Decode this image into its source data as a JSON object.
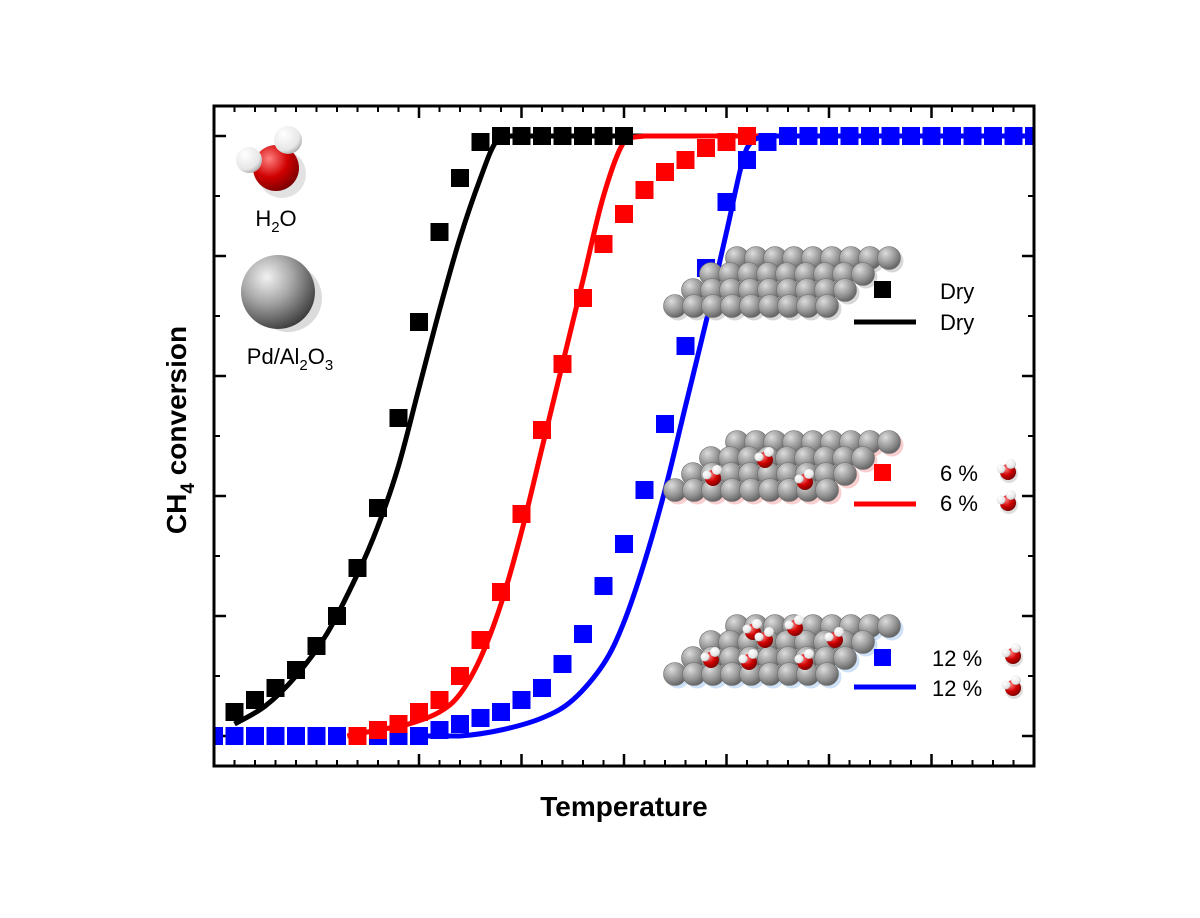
{
  "chart_data": {
    "type": "scatter",
    "xlabel": "Temperature",
    "ylabel_main": "CH",
    "ylabel_sub": "4",
    "ylabel_rest": " conversion",
    "xlim": [
      0,
      16
    ],
    "ylim": [
      -0.05,
      1.05
    ],
    "xticks_major": [
      4,
      6,
      8,
      10,
      12,
      14
    ],
    "xticks_minor": [
      0.4,
      0.8,
      1.2,
      1.6,
      2.0,
      2.4,
      2.8,
      3.2,
      3.6,
      4.4,
      4.8,
      5.2,
      5.6,
      6.4,
      6.8,
      7.2,
      7.6,
      8.4,
      8.8,
      9.2,
      9.6,
      10.4,
      10.8,
      11.2,
      11.6,
      12.4,
      12.8,
      13.2,
      13.6,
      14.4,
      14.8,
      15.2,
      15.6
    ],
    "yticks_major": [
      0.0,
      0.2,
      0.4,
      0.6,
      0.8,
      1.0
    ],
    "yticks_minor": [
      0.1,
      0.3,
      0.5,
      0.7,
      0.9
    ],
    "grid": false,
    "legend_position": "right",
    "series": [
      {
        "key": "dry_points",
        "name": "Dry",
        "kind": "points",
        "color": "#000000",
        "x": [
          0.4,
          0.8,
          1.2,
          1.6,
          2.0,
          2.4,
          2.8,
          3.2,
          3.6,
          4.0,
          4.4,
          4.8,
          5.2,
          5.6,
          6.0,
          6.4,
          6.8,
          7.2,
          7.6,
          8.0
        ],
        "y": [
          0.04,
          0.06,
          0.08,
          0.11,
          0.15,
          0.2,
          0.28,
          0.38,
          0.53,
          0.69,
          0.84,
          0.93,
          0.99,
          1.0,
          1.0,
          1.0,
          1.0,
          1.0,
          1.0,
          1.0
        ]
      },
      {
        "key": "dry_fit",
        "name": "Dry",
        "kind": "line",
        "color": "#000000",
        "x": [
          0.4,
          1.0,
          1.6,
          2.2,
          2.8,
          3.2,
          3.6,
          4.0,
          4.4,
          4.8,
          5.2,
          5.5,
          5.8,
          6.4,
          7.0,
          8.0,
          10.0,
          16.0
        ],
        "y": [
          0.02,
          0.05,
          0.1,
          0.17,
          0.27,
          0.35,
          0.45,
          0.58,
          0.71,
          0.83,
          0.93,
          0.99,
          1.0,
          1.0,
          1.0,
          1.0,
          1.0,
          1.0
        ]
      },
      {
        "key": "w6_points",
        "name": "6 %",
        "kind": "points",
        "color": "#ff0000",
        "x": [
          2.8,
          3.2,
          3.6,
          4.0,
          4.4,
          4.8,
          5.2,
          5.6,
          6.0,
          6.4,
          6.8,
          7.2,
          7.6,
          8.0,
          8.4,
          8.8,
          9.2,
          9.6,
          10.0,
          10.4
        ],
        "y": [
          0.0,
          0.01,
          0.02,
          0.04,
          0.06,
          0.1,
          0.16,
          0.24,
          0.37,
          0.51,
          0.62,
          0.73,
          0.82,
          0.87,
          0.91,
          0.94,
          0.96,
          0.98,
          0.99,
          1.0
        ]
      },
      {
        "key": "w6_fit",
        "name": "6 %",
        "kind": "line",
        "color": "#ff0000",
        "x": [
          2.6,
          3.2,
          3.8,
          4.4,
          4.8,
          5.2,
          5.6,
          6.0,
          6.4,
          6.8,
          7.2,
          7.6,
          8.0,
          8.4,
          8.8,
          9.2,
          10.0,
          16.0
        ],
        "y": [
          0.0,
          0.01,
          0.02,
          0.04,
          0.07,
          0.13,
          0.22,
          0.34,
          0.48,
          0.62,
          0.76,
          0.9,
          0.99,
          1.0,
          1.0,
          1.0,
          1.0,
          1.0
        ]
      },
      {
        "key": "w12_points",
        "name": "12 %",
        "kind": "points",
        "color": "#0000ff",
        "x": [
          0.0,
          0.4,
          0.8,
          1.2,
          1.6,
          2.0,
          2.4,
          2.8,
          3.2,
          3.6,
          4.0,
          4.4,
          4.8,
          5.2,
          5.6,
          6.0,
          6.4,
          6.8,
          7.2,
          7.6,
          8.0,
          8.4,
          8.8,
          9.2,
          9.6,
          10.0,
          10.4,
          10.8,
          11.2,
          11.6,
          12.0,
          12.4,
          12.8,
          13.2,
          13.6,
          14.0,
          14.4,
          14.8,
          15.2,
          15.6,
          16.0
        ],
        "y": [
          0.0,
          0.0,
          0.0,
          0.0,
          0.0,
          0.0,
          0.0,
          0.0,
          0.0,
          0.0,
          0.0,
          0.01,
          0.02,
          0.03,
          0.04,
          0.06,
          0.08,
          0.12,
          0.17,
          0.25,
          0.32,
          0.41,
          0.52,
          0.65,
          0.78,
          0.89,
          0.96,
          0.99,
          1.0,
          1.0,
          1.0,
          1.0,
          1.0,
          1.0,
          1.0,
          1.0,
          1.0,
          1.0,
          1.0,
          1.0,
          1.0
        ]
      },
      {
        "key": "w12_fit",
        "name": "12 %",
        "kind": "line",
        "color": "#0000ff",
        "x": [
          4.0,
          4.8,
          5.6,
          6.4,
          7.0,
          7.6,
          8.0,
          8.4,
          8.8,
          9.2,
          9.6,
          10.0,
          10.4,
          10.8,
          11.2,
          12.0,
          16.0
        ],
        "y": [
          0.0,
          0.0,
          0.01,
          0.03,
          0.06,
          0.12,
          0.19,
          0.29,
          0.41,
          0.55,
          0.69,
          0.84,
          0.98,
          1.0,
          1.0,
          1.0,
          1.0
        ]
      }
    ]
  },
  "legend": {
    "dry": {
      "points_label": "Dry",
      "line_label": "Dry"
    },
    "w6": {
      "points_label": "6 %",
      "line_label": "6 %"
    },
    "w12": {
      "points_label": "12 %",
      "line_label": "12 %"
    }
  },
  "inset": {
    "water_label_main": "H",
    "water_label_sub": "2",
    "water_label_rest": "O",
    "catalyst_label_a": "Pd/Al",
    "catalyst_sub_1": "2",
    "catalyst_label_b": "O",
    "catalyst_sub_2": "3"
  },
  "icons": {
    "water": "water-molecule-icon",
    "catalyst": "catalyst-sphere-icon",
    "surface": "catalyst-surface-icon"
  },
  "colors": {
    "water_red": "#d01010",
    "water_white": "#ffffff",
    "catalyst_gray": "#8c8c8c"
  }
}
